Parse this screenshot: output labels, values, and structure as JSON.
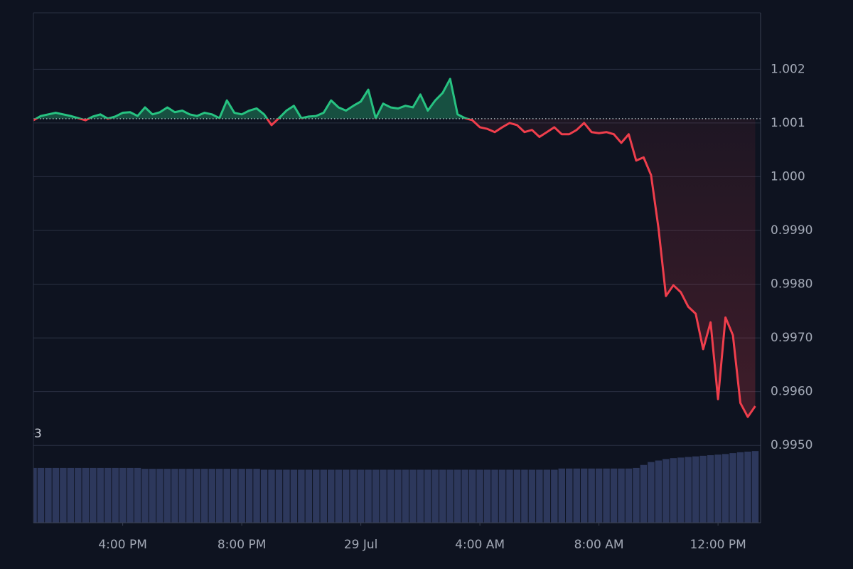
{
  "chart_data": {
    "type": "line",
    "x": [
      13,
      13.25,
      13.5,
      13.75,
      14,
      14.25,
      14.5,
      14.75,
      15,
      15.25,
      15.5,
      15.75,
      16,
      16.25,
      16.5,
      16.75,
      17,
      17.25,
      17.5,
      17.75,
      18,
      18.25,
      18.5,
      18.75,
      19,
      19.25,
      19.5,
      19.75,
      20,
      20.25,
      20.5,
      20.75,
      21,
      21.25,
      21.5,
      21.75,
      22,
      22.25,
      22.5,
      22.75,
      23,
      23.25,
      23.5,
      23.75,
      24,
      24.25,
      24.5,
      24.75,
      25,
      25.25,
      25.5,
      25.75,
      26,
      26.25,
      26.5,
      26.75,
      27,
      27.25,
      27.5,
      27.75,
      28,
      28.25,
      28.5,
      28.75,
      29,
      29.25,
      29.5,
      29.75,
      30,
      30.25,
      30.5,
      30.75,
      31,
      31.25,
      31.5,
      31.75,
      32,
      32.25,
      32.5,
      32.75,
      33,
      33.25,
      33.5,
      33.75,
      34,
      34.25,
      34.5,
      34.75,
      35,
      35.25,
      35.5,
      35.75,
      36,
      36.25,
      36.5,
      36.75,
      37,
      37.25
    ],
    "values": [
      1.00105,
      1.00113,
      1.00116,
      1.00119,
      1.00116,
      1.00113,
      1.00109,
      1.00105,
      1.00112,
      1.00116,
      1.00108,
      1.00112,
      1.00119,
      1.0012,
      1.00113,
      1.00129,
      1.00116,
      1.0012,
      1.00129,
      1.0012,
      1.00123,
      1.00116,
      1.00113,
      1.00119,
      1.00116,
      1.00109,
      1.00142,
      1.00119,
      1.00116,
      1.00123,
      1.00127,
      1.00116,
      1.00096,
      1.00109,
      1.00123,
      1.00132,
      1.00109,
      1.00112,
      1.00113,
      1.00119,
      1.00142,
      1.00129,
      1.00123,
      1.00132,
      1.0014,
      1.00162,
      1.00109,
      1.00136,
      1.00129,
      1.00127,
      1.00132,
      1.00129,
      1.00153,
      1.00123,
      1.00142,
      1.00156,
      1.00182,
      1.00116,
      1.00109,
      1.00105,
      1.00092,
      1.00089,
      1.00083,
      1.00092,
      1.001,
      1.00096,
      1.00083,
      1.00087,
      1.00074,
      1.00083,
      1.00092,
      1.00079,
      1.00079,
      1.00087,
      1.001,
      1.00083,
      1.00081,
      1.00083,
      1.00079,
      1.00063,
      1.00079,
      1.0003,
      1.00036,
      1.00003,
      0.99904,
      0.99778,
      0.99798,
      0.99785,
      0.99758,
      0.99745,
      0.99679,
      0.99729,
      0.99586,
      0.99738,
      0.99705,
      0.99579,
      0.99553,
      0.99573
    ],
    "baseline": 1.00108,
    "up_color": "#27c281",
    "down_color": "#ef3e4c",
    "volume": {
      "axis": "y2",
      "color": "#2d385c",
      "values": [
        1.85,
        1.85,
        1.85,
        1.85,
        1.85,
        1.85,
        1.85,
        1.85,
        1.85,
        1.85,
        1.85,
        1.85,
        1.85,
        1.85,
        1.85,
        1.82,
        1.82,
        1.82,
        1.82,
        1.82,
        1.82,
        1.82,
        1.82,
        1.82,
        1.82,
        1.82,
        1.82,
        1.82,
        1.82,
        1.82,
        1.82,
        1.79,
        1.79,
        1.79,
        1.79,
        1.79,
        1.79,
        1.79,
        1.79,
        1.79,
        1.79,
        1.79,
        1.79,
        1.79,
        1.79,
        1.79,
        1.79,
        1.79,
        1.79,
        1.79,
        1.79,
        1.79,
        1.79,
        1.79,
        1.79,
        1.79,
        1.79,
        1.79,
        1.79,
        1.79,
        1.79,
        1.79,
        1.79,
        1.79,
        1.79,
        1.79,
        1.79,
        1.79,
        1.79,
        1.79,
        1.79,
        1.83,
        1.83,
        1.83,
        1.83,
        1.83,
        1.83,
        1.83,
        1.83,
        1.83,
        1.83,
        1.85,
        1.95,
        2.05,
        2.1,
        2.15,
        2.18,
        2.2,
        2.22,
        2.24,
        2.26,
        2.28,
        2.3,
        2.32,
        2.35,
        2.38,
        2.4,
        2.42
      ]
    },
    "xlim": [
      13,
      37.43
    ],
    "xticks": [
      {
        "value": 16,
        "label": "4:00 PM"
      },
      {
        "value": 20,
        "label": "8:00 PM"
      },
      {
        "value": 24,
        "label": "29 Jul"
      },
      {
        "value": 28,
        "label": "4:00 AM"
      },
      {
        "value": 32,
        "label": "8:00 AM"
      },
      {
        "value": 36,
        "label": "12:00 PM"
      }
    ],
    "ylim": [
      0.99356,
      1.00305
    ],
    "yticks": [
      1.002,
      1.001,
      {
        "value": 1,
        "label": "1.000"
      },
      {
        "value": 0.999,
        "label": "0.9990"
      },
      {
        "value": 0.998,
        "label": "0.9980"
      },
      {
        "value": 0.997,
        "label": "0.9970"
      },
      {
        "value": 0.996,
        "label": "0.9960"
      },
      {
        "value": 0.995,
        "label": "0.9950"
      }
    ],
    "y2lim": [
      0,
      3
    ],
    "y2ticks": [
      3
    ],
    "grid": true
  }
}
